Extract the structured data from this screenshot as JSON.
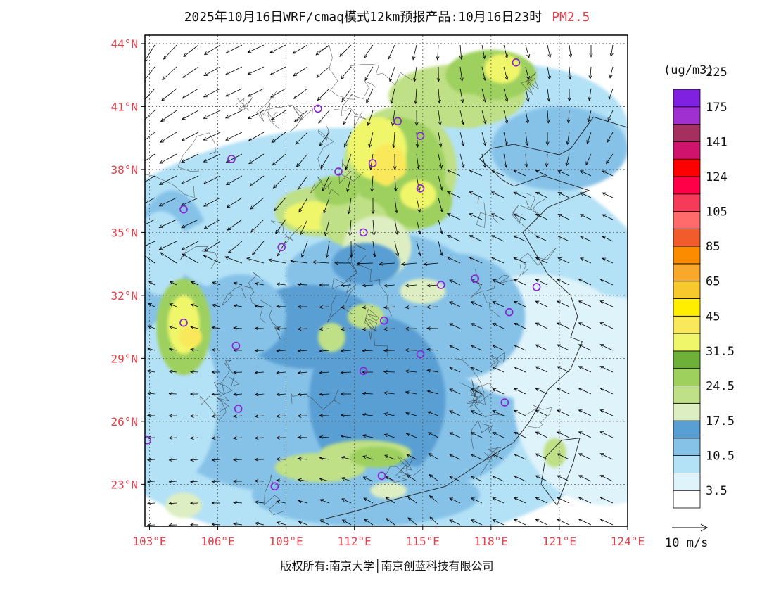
{
  "title": {
    "main": "2025年10月16日WRF/cmaq模式12km预报产品:10月16日23时",
    "species": "PM2.5"
  },
  "map": {
    "lon_ticks": [
      "103°E",
      "106°E",
      "109°E",
      "112°E",
      "115°E",
      "118°E",
      "121°E",
      "124°E"
    ],
    "lat_ticks": [
      "44°N",
      "41°N",
      "38°N",
      "35°N",
      "32°N",
      "29°N",
      "26°N",
      "23°N"
    ],
    "lon_range": [
      102.8,
      124.0
    ],
    "lat_range": [
      21.0,
      44.4
    ],
    "stations": [
      [
        119.1,
        43.1
      ],
      [
        110.4,
        40.9
      ],
      [
        113.9,
        40.3
      ],
      [
        114.9,
        39.6
      ],
      [
        106.6,
        38.5
      ],
      [
        111.3,
        37.9
      ],
      [
        112.8,
        38.3
      ],
      [
        114.9,
        37.1
      ],
      [
        104.5,
        36.1
      ],
      [
        112.4,
        35.0
      ],
      [
        108.8,
        34.3
      ],
      [
        117.3,
        32.8
      ],
      [
        115.8,
        32.5
      ],
      [
        120.0,
        32.4
      ],
      [
        118.8,
        31.2
      ],
      [
        104.5,
        30.7
      ],
      [
        113.3,
        30.8
      ],
      [
        106.8,
        29.6
      ],
      [
        112.4,
        28.4
      ],
      [
        114.9,
        29.2
      ],
      [
        118.6,
        26.9
      ],
      [
        106.9,
        26.6
      ],
      [
        102.9,
        25.1
      ],
      [
        108.5,
        22.9
      ],
      [
        113.2,
        23.4
      ]
    ],
    "station_color": "#8a1fd6",
    "wind_reference": "10 m/s"
  },
  "colorbar": {
    "units": "(ug/m3)",
    "colors": [
      "#ffffff",
      "#dff3fb",
      "#b3e1f6",
      "#86c2e8",
      "#5a9fd3",
      "#ddeec2",
      "#bfe086",
      "#9ed05e",
      "#6fb03a",
      "#f0f66a",
      "#f9e85a",
      "#ffee00",
      "#f7c92c",
      "#f8a92c",
      "#fb8c00",
      "#f25c2c",
      "#ff6a6a",
      "#f63a5a",
      "#ff0048",
      "#ff0000",
      "#d0146e",
      "#a53060",
      "#a030d0",
      "#8020e0"
    ],
    "labels": [
      "3.5",
      "10.5",
      "17.5",
      "24.5",
      "31.5",
      "45",
      "65",
      "85",
      "105",
      "124",
      "141",
      "175",
      "225"
    ]
  },
  "copyright": "版权所有:南京大学│南京创蓝科技有限公司"
}
